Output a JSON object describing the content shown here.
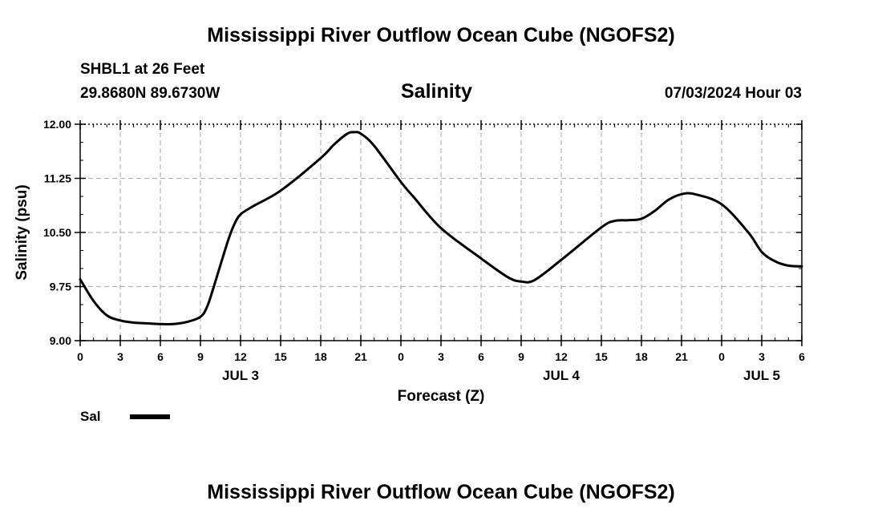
{
  "header": {
    "main_title": "Mississippi River Outflow Ocean Cube (NGOFS2)",
    "station": "SHBL1 at 26 Feet",
    "location": "29.8680N  89.6730W",
    "timestamp": "07/03/2024 Hour 03",
    "bottom_title": "Mississippi River Outflow Ocean Cube (NGOFS2)"
  },
  "chart_data": {
    "type": "line",
    "title": "Salinity",
    "xlabel": "Forecast (Z)",
    "ylabel": "Salinity (psu)",
    "ylim": [
      9.0,
      12.0
    ],
    "xlim": [
      0,
      54
    ],
    "grid": true,
    "y_ticks": [
      "9.00",
      "9.75",
      "10.50",
      "11.25",
      "12.00"
    ],
    "x_tick_labels": [
      "0",
      "3",
      "6",
      "9",
      "12",
      "15",
      "18",
      "21",
      "0",
      "3",
      "6",
      "9",
      "12",
      "15",
      "18",
      "21",
      "0",
      "3",
      "6"
    ],
    "date_labels": [
      {
        "label": "JUL 3",
        "hour": 12
      },
      {
        "label": "JUL 4",
        "hour": 36
      },
      {
        "label": "JUL 5",
        "hour": 51
      }
    ],
    "series": [
      {
        "name": "Sal",
        "x": [
          0,
          1,
          2,
          3,
          4,
          5,
          6,
          7,
          8,
          9,
          9.5,
          10,
          11,
          11.5,
          12,
          13,
          15,
          18,
          19,
          20,
          20.5,
          21,
          22,
          24,
          25,
          27,
          30,
          32,
          33,
          34,
          36,
          39,
          40,
          41,
          42,
          43,
          44,
          45,
          46,
          48,
          50,
          51,
          52,
          53,
          54
        ],
        "y": [
          9.85,
          9.55,
          9.35,
          9.28,
          9.25,
          9.24,
          9.23,
          9.23,
          9.26,
          9.33,
          9.47,
          9.75,
          10.35,
          10.6,
          10.75,
          10.87,
          11.08,
          11.53,
          11.72,
          11.87,
          11.89,
          11.87,
          11.7,
          11.2,
          10.98,
          10.56,
          10.14,
          9.88,
          9.82,
          9.84,
          10.12,
          10.57,
          10.66,
          10.67,
          10.69,
          10.8,
          10.95,
          11.03,
          11.03,
          10.89,
          10.5,
          10.23,
          10.1,
          10.04,
          10.03
        ]
      }
    ]
  },
  "legend": {
    "label": "Sal"
  }
}
